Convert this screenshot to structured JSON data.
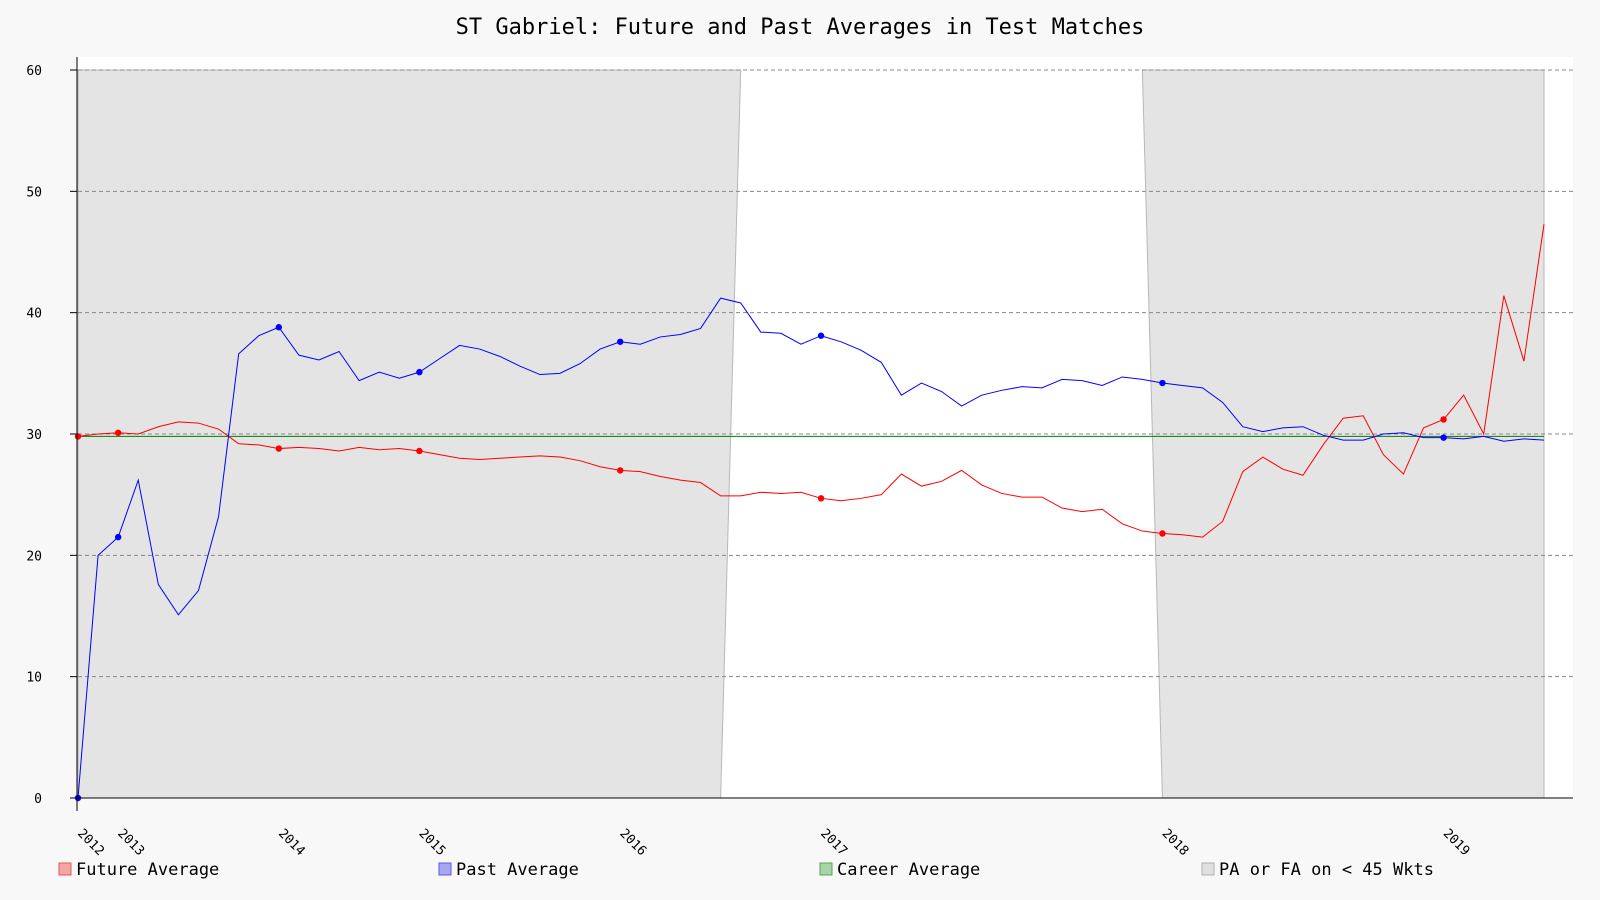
{
  "chart_data": {
    "type": "line",
    "title": "ST Gabriel: Future and Past Averages in Test Matches",
    "xlabel": "",
    "ylabel": "",
    "ylim": [
      0,
      60
    ],
    "y_ticks": [
      0,
      10,
      20,
      30,
      40,
      50,
      60
    ],
    "x_ticks": [
      {
        "label": "2012",
        "match": 0
      },
      {
        "label": "2013",
        "match": 2
      },
      {
        "label": "2014",
        "match": 10
      },
      {
        "label": "2015",
        "match": 17
      },
      {
        "label": "2016",
        "match": 27
      },
      {
        "label": "2017",
        "match": 37
      },
      {
        "label": "2018",
        "match": 54
      },
      {
        "label": "2019",
        "match": 68
      }
    ],
    "grid": "horizontal dashed",
    "legend_position": "bottom",
    "shaded_regions": [
      {
        "name": "PA or FA on < 45 Wkts",
        "top_start": 0,
        "top_end": 33,
        "bottom_start": 0,
        "bottom_end": 32
      },
      {
        "name": "PA or FA on < 45 Wkts",
        "top_start": 53,
        "top_end": 73,
        "bottom_start": 54,
        "bottom_end": 73
      }
    ],
    "series": [
      {
        "name": "Future Average",
        "color": "#ff0000",
        "marker_indices": [
          0,
          2,
          10,
          17,
          27,
          37,
          54,
          68
        ],
        "values": [
          29.8,
          30.0,
          30.1,
          30.0,
          30.6,
          31.0,
          30.9,
          30.4,
          29.2,
          29.1,
          28.8,
          28.9,
          28.8,
          28.6,
          28.9,
          28.7,
          28.8,
          28.6,
          28.3,
          28.0,
          27.9,
          28.0,
          28.1,
          28.2,
          28.1,
          27.8,
          27.3,
          27.0,
          26.9,
          26.5,
          26.2,
          26.0,
          24.9,
          24.9,
          25.2,
          25.1,
          25.2,
          24.7,
          24.5,
          24.7,
          25.0,
          26.7,
          25.7,
          26.1,
          27.0,
          25.8,
          25.1,
          24.8,
          24.8,
          23.9,
          23.6,
          23.8,
          22.6,
          22.0,
          21.8,
          21.7,
          21.5,
          22.8,
          26.9,
          28.1,
          27.1,
          26.6,
          29.1,
          31.3,
          31.5,
          28.3,
          26.7,
          30.5,
          31.2,
          33.2,
          30.0,
          41.4,
          36.0,
          47.3
        ]
      },
      {
        "name": "Past Average",
        "color": "#0000ff",
        "marker_indices": [
          0,
          2,
          10,
          17,
          27,
          37,
          54,
          68
        ],
        "values": [
          0.0,
          20.0,
          21.5,
          26.2,
          17.6,
          15.1,
          17.1,
          23.2,
          36.6,
          38.1,
          38.8,
          36.5,
          36.1,
          36.8,
          34.4,
          35.1,
          34.6,
          35.1,
          36.2,
          37.3,
          37.0,
          36.4,
          35.6,
          34.9,
          35.0,
          35.8,
          37.0,
          37.6,
          37.4,
          38.0,
          38.2,
          38.7,
          41.2,
          40.8,
          38.4,
          38.3,
          37.4,
          38.1,
          37.6,
          36.9,
          35.9,
          33.2,
          34.2,
          33.5,
          32.3,
          33.2,
          33.6,
          33.9,
          33.8,
          34.5,
          34.4,
          34.0,
          34.7,
          34.5,
          34.2,
          34.0,
          33.8,
          32.6,
          30.6,
          30.2,
          30.5,
          30.6,
          29.9,
          29.5,
          29.5,
          30.0,
          30.1,
          29.7,
          29.7,
          29.6,
          29.8,
          29.4,
          29.6,
          29.5
        ]
      },
      {
        "name": "Career Average",
        "color": "#008000",
        "values": [
          29.8
        ]
      }
    ],
    "legend": [
      {
        "label": "Future Average",
        "fill": "#f4a6a6",
        "stroke": "#e05a5a"
      },
      {
        "label": "Past Average",
        "fill": "#a6a6f4",
        "stroke": "#5a5ae0"
      },
      {
        "label": "Career Average",
        "fill": "#a6d6a6",
        "stroke": "#5aa05a"
      },
      {
        "label": "PA or FA on < 45 Wkts",
        "fill": "#e0e0e0",
        "stroke": "#b0b0b0"
      }
    ]
  }
}
